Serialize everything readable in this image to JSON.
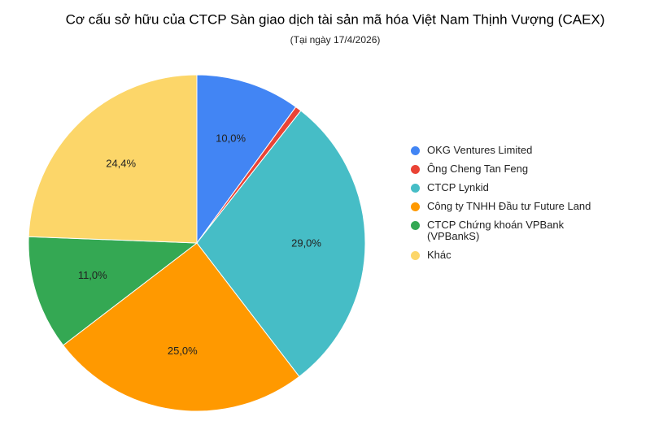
{
  "chart_data": {
    "type": "pie",
    "title": "Cơ cấu sở hữu của CTCP Sàn giao dịch tài sản mã hóa Việt Nam Thịnh Vượng (CAEX)",
    "subtitle": "(Tại ngày 17/4/2026)",
    "categories": [
      "OKG Ventures Limited",
      "Ông Cheng Tan Feng",
      "CTCP Lynkid",
      "Công ty TNHH Đầu tư Future Land",
      "CTCP Chứng khoán VPBank (VPBankS)",
      "Khác"
    ],
    "values": [
      10.0,
      0.6,
      29.0,
      25.0,
      11.0,
      24.4
    ],
    "value_labels": [
      "10,0%",
      null,
      "29,0%",
      "25,0%",
      "11,0%",
      "24,4%"
    ],
    "colors": [
      "#4285f4",
      "#ea4335",
      "#46bdc6",
      "#ff9900",
      "#34a853",
      "#fcd669"
    ],
    "legend": "right"
  }
}
